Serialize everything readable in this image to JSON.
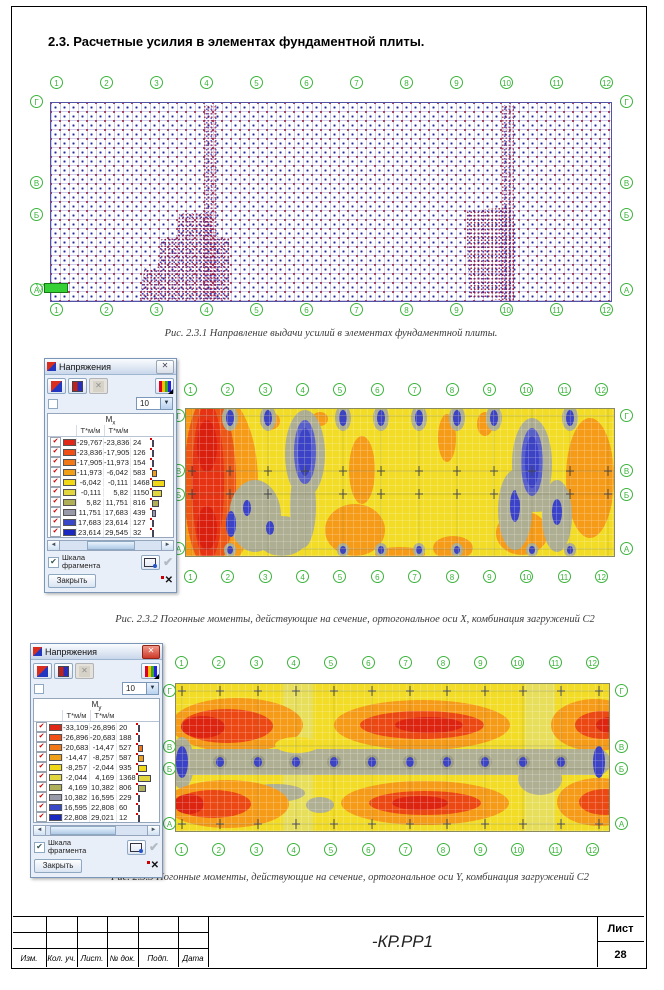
{
  "page": {
    "title": "2.3. Расчетные усилия в элементах фундаментной плиты."
  },
  "axes": {
    "cols": [
      "1",
      "2",
      "3",
      "4",
      "5",
      "6",
      "7",
      "8",
      "9",
      "10",
      "11",
      "12"
    ],
    "rows": [
      "Г",
      "В",
      "Б",
      "А"
    ]
  },
  "fig1": {
    "caption": "Рис. 2.3.1 Направление выдачи усилий в элементах фундаментной плиты."
  },
  "fig2": {
    "caption": "Рис. 2.3.2 Погонные моменты, действующие на сечение, ортогональное оси X, комбинация загружений С2"
  },
  "fig3": {
    "caption": "Рис. 2.3.3 Погонные моменты, действующие на сечение, ортогональное оси Y,  комбинация загружений С2"
  },
  "dialog_mx": {
    "title": "Напряжения",
    "combo_value": "10",
    "quantity": "M",
    "quantity_sub": "x",
    "unit_col1": "Т*м/м",
    "unit_col2": "Т*м/м",
    "check_glyph": "✔",
    "scale_line1": "Шкала",
    "scale_line2": "фрагмента",
    "close_label": "Закрыть",
    "rows": [
      {
        "from": "-29,767",
        "to": "-23,836",
        "count": "24",
        "color": "#E02818"
      },
      {
        "from": "-23,836",
        "to": "-17,905",
        "count": "126",
        "color": "#F05016"
      },
      {
        "from": "-17,905",
        "to": "-11,973",
        "count": "154",
        "color": "#F07816"
      },
      {
        "from": "-11,973",
        "to": "-6,042",
        "count": "583",
        "color": "#F0A018"
      },
      {
        "from": "-6,042",
        "to": "-0,111",
        "count": "1468",
        "color": "#F0D818"
      },
      {
        "from": "-0,111",
        "to": "5,82",
        "count": "1150",
        "color": "#E2D63E"
      },
      {
        "from": "5,82",
        "to": "11,751",
        "count": "816",
        "color": "#B0B058"
      },
      {
        "from": "11,751",
        "to": "17,683",
        "count": "439",
        "color": "#9899A9"
      },
      {
        "from": "17,683",
        "to": "23,614",
        "count": "127",
        "color": "#3848C8"
      },
      {
        "from": "23,614",
        "to": "29,545",
        "count": "32",
        "color": "#1828C0"
      }
    ]
  },
  "dialog_my": {
    "title": "Напряжения",
    "combo_value": "10",
    "quantity": "M",
    "quantity_sub": "y",
    "unit_col1": "Т*м/м",
    "unit_col2": "Т*м/м",
    "check_glyph": "✔",
    "scale_line1": "Шкала",
    "scale_line2": "фрагмента",
    "close_label": "Закрыть",
    "rows": [
      {
        "from": "-33,109",
        "to": "-26,896",
        "count": "20",
        "color": "#E02818"
      },
      {
        "from": "-26,896",
        "to": "-20,683",
        "count": "188",
        "color": "#F05016"
      },
      {
        "from": "-20,683",
        "to": "-14,47",
        "count": "527",
        "color": "#F07816"
      },
      {
        "from": "-14,47",
        "to": "-8,257",
        "count": "587",
        "color": "#F0A018"
      },
      {
        "from": "-8,257",
        "to": "-2,044",
        "count": "935",
        "color": "#F0D818"
      },
      {
        "from": "-2,044",
        "to": "4,169",
        "count": "1368",
        "color": "#E2D63E"
      },
      {
        "from": "4,169",
        "to": "10,382",
        "count": "806",
        "color": "#B0B058"
      },
      {
        "from": "10,382",
        "to": "16,595",
        "count": "229",
        "color": "#9899A9"
      },
      {
        "from": "16,595",
        "to": "22,808",
        "count": "60",
        "color": "#3848C8"
      },
      {
        "from": "22,808",
        "to": "29,021",
        "count": "12",
        "color": "#1828C0"
      }
    ]
  },
  "titleblock": {
    "code": "-КР.РР1",
    "sheet_label": "Лист",
    "sheet_number": "28",
    "columns": [
      "Изм.",
      "Кол. уч.",
      "Лист.",
      "№ док.",
      "Подп.",
      "Дата"
    ]
  }
}
